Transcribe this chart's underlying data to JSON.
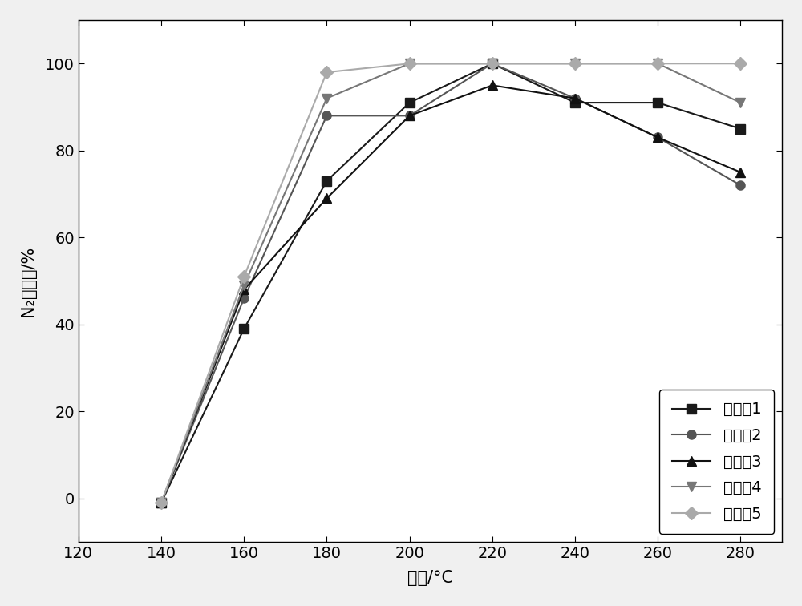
{
  "x": [
    140,
    160,
    180,
    200,
    220,
    240,
    260,
    280
  ],
  "series": [
    {
      "label": "实施例1",
      "values": [
        -1,
        39,
        73,
        91,
        100,
        91,
        91,
        85
      ],
      "color": "#1a1a1a",
      "marker": "s",
      "linestyle": "-"
    },
    {
      "label": "实施例2",
      "values": [
        -1,
        46,
        88,
        88,
        100,
        92,
        83,
        72
      ],
      "color": "#555555",
      "marker": "o",
      "linestyle": "-"
    },
    {
      "label": "实施例3",
      "values": [
        -1,
        48,
        69,
        88,
        95,
        92,
        83,
        75
      ],
      "color": "#111111",
      "marker": "^",
      "linestyle": "-"
    },
    {
      "label": "实施例4",
      "values": [
        -1,
        49,
        92,
        100,
        100,
        100,
        100,
        91
      ],
      "color": "#777777",
      "marker": "v",
      "linestyle": "-"
    },
    {
      "label": "实施例5",
      "values": [
        -1,
        51,
        98,
        100,
        100,
        100,
        100,
        100
      ],
      "color": "#aaaaaa",
      "marker": "D",
      "linestyle": "-"
    }
  ],
  "xlabel": "温度/°C",
  "ylabel": "N₂选择性/%",
  "xlim": [
    120,
    290
  ],
  "ylim": [
    -10,
    110
  ],
  "xticks": [
    120,
    140,
    160,
    180,
    200,
    220,
    240,
    260,
    280
  ],
  "yticks": [
    0,
    20,
    40,
    60,
    80,
    100
  ],
  "legend_loc": "lower right",
  "axis_fontsize": 15,
  "tick_fontsize": 14,
  "legend_fontsize": 14,
  "markersize": 8,
  "linewidth": 1.5,
  "bg_color": "#f0f0f0"
}
